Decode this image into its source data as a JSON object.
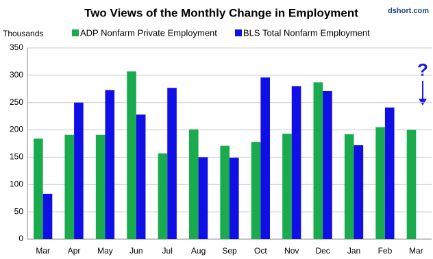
{
  "chart_data": {
    "type": "bar",
    "title": "Two Views of the Monthly Change in Employment",
    "watermark": "dshort.com",
    "y_label": "Thousands",
    "annotation": "?",
    "categories": [
      "Mar",
      "Apr",
      "May",
      "Jun",
      "Jul",
      "Aug",
      "Sep",
      "Oct",
      "Nov",
      "Dec",
      "Jan",
      "Feb",
      "Mar"
    ],
    "series": [
      {
        "name": "ADP Nonfarm Private Employment",
        "color": "#1aab4f",
        "values": [
          184,
          191,
          191,
          307,
          157,
          201,
          171,
          178,
          193,
          287,
          192,
          205,
          200
        ]
      },
      {
        "name": "BLS Total Nonfarm Employment",
        "color": "#1010e6",
        "values": [
          83,
          250,
          273,
          228,
          277,
          150,
          149,
          296,
          280,
          271,
          172,
          241,
          null
        ]
      }
    ],
    "ylim": [
      0,
      350
    ],
    "yticks": [
      0,
      50,
      100,
      150,
      200,
      250,
      300,
      350
    ],
    "grid": true
  }
}
